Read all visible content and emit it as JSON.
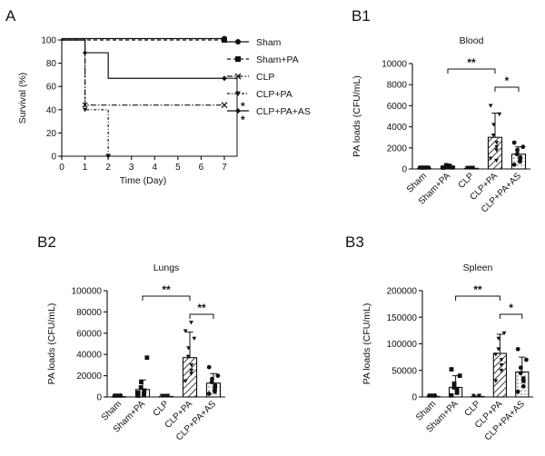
{
  "panels": {
    "A": "A",
    "B1": "B1",
    "B2": "B2",
    "B3": "B3"
  },
  "chart_data": [
    {
      "id": "A",
      "type": "line",
      "subtype": "kaplan-meier survival",
      "title": "",
      "xlabel": "Time (Day)",
      "ylabel": "Survival (%)",
      "xlim": [
        0,
        7
      ],
      "ylim": [
        0,
        100
      ],
      "xticks": [
        0,
        1,
        2,
        3,
        4,
        5,
        6,
        7
      ],
      "yticks": [
        0,
        20,
        40,
        60,
        80,
        100
      ],
      "series": [
        {
          "name": "Sham",
          "x": [
            0,
            7
          ],
          "y": [
            100,
            100
          ]
        },
        {
          "name": "Sham+PA",
          "x": [
            0,
            7
          ],
          "y": [
            100,
            100
          ]
        },
        {
          "name": "CLP",
          "x": [
            0,
            1,
            1,
            7
          ],
          "y": [
            100,
            100,
            44,
            44
          ]
        },
        {
          "name": "CLP+PA",
          "x": [
            0,
            1,
            1,
            2,
            2
          ],
          "y": [
            100,
            100,
            40,
            40,
            0
          ]
        },
        {
          "name": "CLP+PA+AS",
          "x": [
            0,
            1,
            1,
            2,
            2,
            7
          ],
          "y": [
            100,
            100,
            89,
            89,
            67,
            67
          ]
        }
      ],
      "significance": "**"
    },
    {
      "id": "B1",
      "type": "bar",
      "title": "Blood",
      "ylabel": "PA loads (CFU/mL)",
      "ylim": [
        0,
        10000
      ],
      "yticks": [
        0,
        2000,
        4000,
        6000,
        8000,
        10000
      ],
      "categories": [
        "Sham",
        "Sham+PA",
        "CLP",
        "CLP+PA",
        "CLP+PA+AS"
      ],
      "values": [
        50,
        250,
        60,
        3000,
        1400
      ],
      "errors": [
        30,
        150,
        40,
        2300,
        700
      ],
      "points": [
        [
          0,
          20,
          50,
          80,
          100,
          40
        ],
        [
          100,
          200,
          300,
          350,
          250,
          150
        ],
        [
          0,
          30,
          80,
          100,
          50
        ],
        [
          1000,
          1800,
          2500,
          3200,
          4200,
          5200,
          6000,
          800,
          2100
        ],
        [
          400,
          800,
          1100,
          1400,
          1800,
          2100,
          2500,
          700,
          1000
        ]
      ],
      "comparisons": [
        {
          "from": "Sham+PA",
          "to": "CLP+PA",
          "label": "**"
        },
        {
          "from": "CLP+PA",
          "to": "CLP+PA+AS",
          "label": "*"
        }
      ]
    },
    {
      "id": "B2",
      "type": "bar",
      "title": "Lungs",
      "ylabel": "PA loads (CFU/mL)",
      "ylim": [
        0,
        100000
      ],
      "yticks": [
        0,
        20000,
        40000,
        60000,
        80000,
        100000
      ],
      "categories": [
        "Sham",
        "Sham+PA",
        "CLP",
        "CLP+PA",
        "CLP+PA+AS"
      ],
      "values": [
        300,
        7000,
        500,
        37000,
        13000
      ],
      "errors": [
        300,
        9000,
        500,
        24000,
        9000
      ],
      "points": [
        [
          0,
          500,
          1000,
          200
        ],
        [
          1000,
          3000,
          6000,
          9000,
          14000,
          37000,
          4000,
          2000
        ],
        [
          0,
          800,
          300,
          1200
        ],
        [
          15000,
          22000,
          30000,
          38000,
          46000,
          55000,
          62000,
          70000,
          25000
        ],
        [
          3000,
          7000,
          11000,
          14000,
          17000,
          20000,
          28000,
          5000,
          9000
        ]
      ],
      "comparisons": [
        {
          "from": "Sham+PA",
          "to": "CLP+PA",
          "label": "**"
        },
        {
          "from": "CLP+PA",
          "to": "CLP+PA+AS",
          "label": "**"
        }
      ]
    },
    {
      "id": "B3",
      "type": "bar",
      "title": "Spleen",
      "ylabel": "PA loads (CFU/mL)",
      "ylim": [
        0,
        200000
      ],
      "yticks": [
        0,
        50000,
        100000,
        150000,
        200000
      ],
      "categories": [
        "Sham",
        "Sham+PA",
        "CLP",
        "CLP+PA",
        "CLP+PA+AS"
      ],
      "values": [
        1000,
        18000,
        1000,
        82000,
        47000
      ],
      "errors": [
        1000,
        22000,
        1000,
        36000,
        28000
      ],
      "points": [
        [
          0,
          2000,
          1000,
          500
        ],
        [
          3000,
          8000,
          12000,
          18000,
          25000,
          40000,
          52000,
          15000
        ],
        [
          0,
          1500,
          800
        ],
        [
          30000,
          50000,
          70000,
          90000,
          110000,
          120000,
          80000,
          60000
        ],
        [
          10000,
          20000,
          30000,
          45000,
          55000,
          70000,
          90000,
          35000
        ]
      ],
      "comparisons": [
        {
          "from": "Sham+PA",
          "to": "CLP+PA",
          "label": "**"
        },
        {
          "from": "CLP+PA",
          "to": "CLP+PA+AS",
          "label": "*"
        }
      ]
    }
  ]
}
